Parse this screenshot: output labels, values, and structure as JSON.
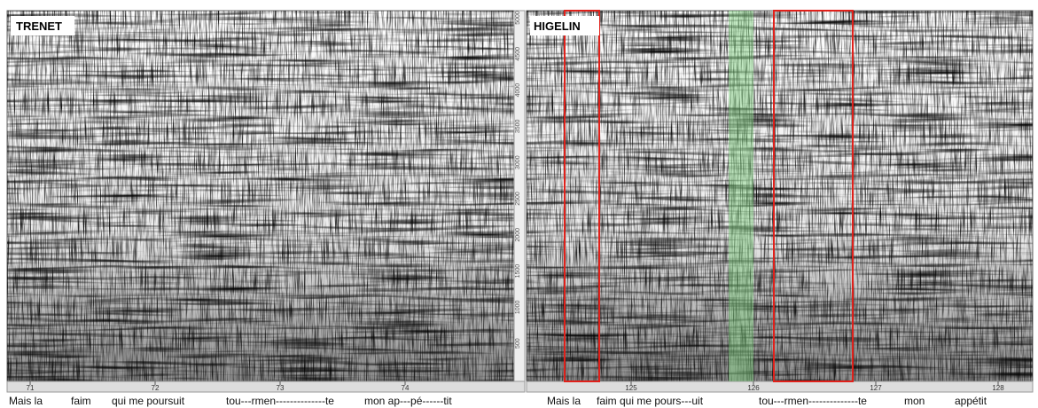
{
  "panels": [
    {
      "label": "TRENET",
      "x_ticks": [
        "71",
        "72",
        "73",
        "74"
      ],
      "y_ticks": [
        "5000",
        "4500",
        "4000",
        "3500",
        "3000",
        "2500",
        "2000",
        "1500",
        "1000",
        "500"
      ],
      "lyrics": [
        "Mais la",
        "faim",
        "qui me poursuit",
        "tou---rmen--------------te",
        "mon ap---pé------tit"
      ]
    },
    {
      "label": "HIGELIN",
      "x_ticks": [
        "125",
        "126",
        "127",
        "128"
      ],
      "lyrics": [
        "Mais la",
        "faim qui me pours---uit",
        "tou---rmen--------------te",
        "mon",
        "appétit"
      ]
    }
  ]
}
